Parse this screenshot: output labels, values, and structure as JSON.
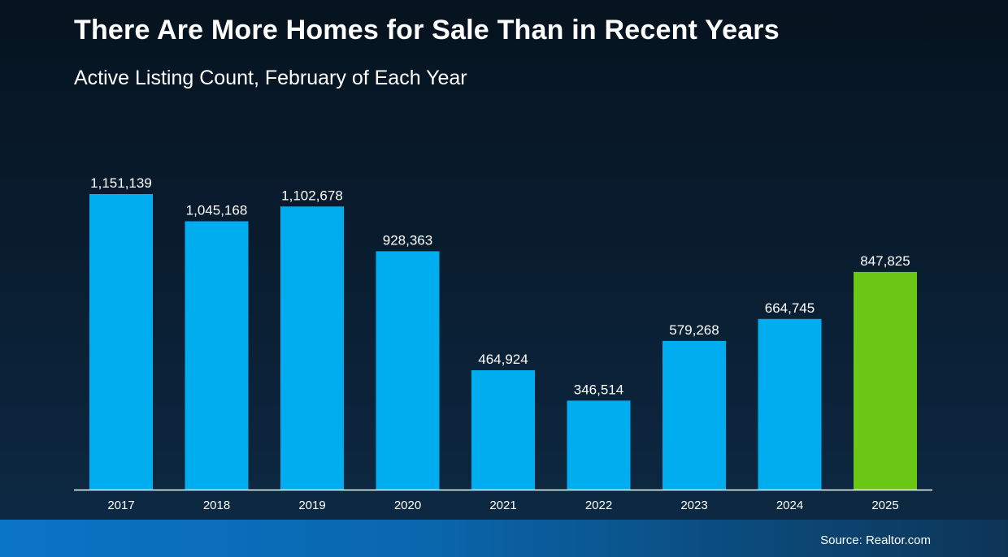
{
  "header": {
    "title": "There Are More Homes for Sale Than in Recent Years",
    "subtitle": "Active Listing Count, February of Each Year"
  },
  "footer": {
    "source": "Source: Realtor.com"
  },
  "colors": {
    "bar": "#00aeef",
    "highlight_bar": "#6cc816",
    "axis": "#ffffff",
    "text": "#ffffff"
  },
  "chart_data": {
    "type": "bar",
    "title": "There Are More Homes for Sale Than in Recent Years",
    "subtitle": "Active Listing Count, February of Each Year",
    "xlabel": "",
    "ylabel": "",
    "categories": [
      "2017",
      "2018",
      "2019",
      "2020",
      "2021",
      "2022",
      "2023",
      "2024",
      "2025"
    ],
    "values": [
      1151139,
      1045168,
      1102678,
      928363,
      464924,
      346514,
      579268,
      664745,
      847825
    ],
    "value_labels": [
      "1,151,139",
      "1,045,168",
      "1,102,678",
      "928,363",
      "464,924",
      "346,514",
      "579,268",
      "664,745",
      "847,825"
    ],
    "highlight_category": "2025",
    "ylim": [
      0,
      1151139
    ],
    "grid": false,
    "legend": "none"
  }
}
